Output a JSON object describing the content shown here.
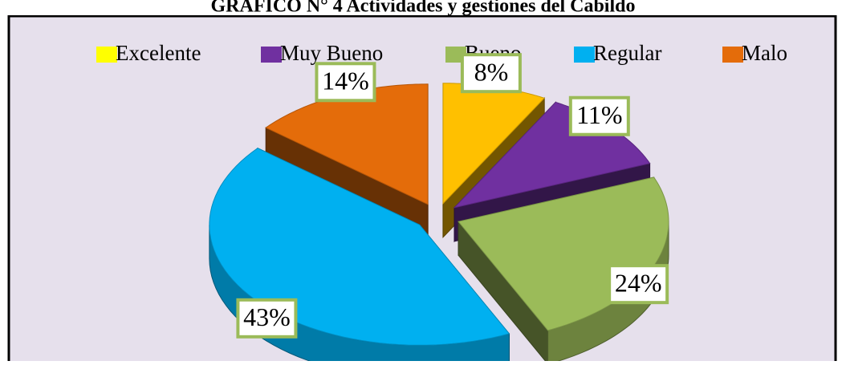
{
  "chart_data": {
    "type": "pie3d",
    "title": "GRÁFICO N° 4 Actividades y gestiones del Cabildo",
    "categories": [
      "Excelente",
      "Muy Bueno",
      "Bueno",
      "Regular",
      "Malo"
    ],
    "values": [
      8,
      11,
      24,
      43,
      14
    ],
    "value_labels": [
      "8%",
      "11%",
      "24%",
      "43%",
      "14%"
    ],
    "colors": [
      "#ffc000",
      "#7030a0",
      "#9bbb59",
      "#00b0f0",
      "#e46c0a"
    ],
    "legend": "top"
  }
}
